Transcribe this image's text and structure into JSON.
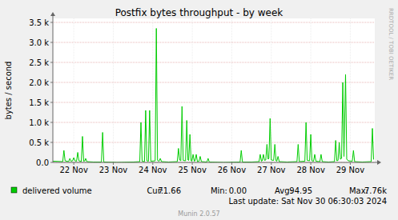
{
  "chart_data": {
    "type": "line",
    "title": "Postfix bytes throughput - by week",
    "y_label": "bytes / second",
    "x": [
      21.97,
      22.22,
      22.25,
      22.28,
      22.37,
      22.4,
      22.43,
      22.47,
      22.5,
      22.53,
      22.57,
      22.6,
      22.63,
      22.69,
      22.72,
      22.75,
      22.78,
      22.8,
      22.83,
      23.0,
      23.2,
      23.23,
      23.26,
      23.6,
      24.0,
      24.17,
      24.2,
      24.23,
      24.29,
      24.32,
      24.35,
      24.39,
      24.42,
      24.45,
      24.56,
      24.59,
      24.62,
      24.66,
      24.69,
      24.72,
      24.9,
      25.12,
      25.15,
      25.18,
      25.21,
      25.24,
      25.27,
      25.33,
      25.36,
      25.39,
      25.41,
      25.44,
      25.47,
      25.49,
      25.52,
      25.55,
      25.57,
      25.6,
      25.63,
      25.67,
      25.7,
      25.73,
      25.87,
      25.9,
      25.93,
      26.3,
      26.71,
      26.74,
      26.77,
      27.0,
      27.19,
      27.22,
      27.25,
      27.27,
      27.3,
      27.33,
      27.36,
      27.39,
      27.42,
      27.44,
      27.47,
      27.5,
      27.56,
      27.59,
      27.62,
      27.64,
      27.67,
      27.7,
      27.9,
      28.15,
      28.18,
      28.21,
      28.35,
      28.38,
      28.41,
      28.47,
      28.5,
      28.53,
      28.57,
      28.6,
      28.63,
      28.73,
      28.76,
      28.79,
      28.95,
      29.1,
      29.13,
      29.16,
      29.19,
      29.22,
      29.25,
      29.28,
      29.31,
      29.34,
      29.38,
      29.41,
      29.45,
      29.55,
      29.58,
      29.61,
      29.8,
      30.03,
      30.06,
      30.09
    ],
    "series": [
      {
        "name": "delivered volume",
        "color": "#00cc00",
        "values": [
          30,
          20,
          300,
          40,
          20,
          100,
          30,
          40,
          120,
          40,
          30,
          250,
          40,
          20,
          650,
          30,
          40,
          100,
          20,
          10,
          10,
          750,
          10,
          0,
          10,
          20,
          1000,
          30,
          20,
          1300,
          40,
          30,
          1300,
          30,
          40,
          3350,
          50,
          30,
          100,
          20,
          10,
          20,
          350,
          60,
          40,
          1400,
          50,
          40,
          1050,
          60,
          50,
          700,
          40,
          30,
          200,
          30,
          40,
          200,
          20,
          30,
          150,
          20,
          10,
          100,
          10,
          0,
          10,
          300,
          10,
          10,
          20,
          200,
          30,
          40,
          200,
          50,
          60,
          450,
          80,
          100,
          1100,
          60,
          50,
          450,
          40,
          30,
          150,
          20,
          10,
          20,
          450,
          20,
          30,
          1000,
          50,
          40,
          700,
          40,
          30,
          200,
          30,
          20,
          200,
          20,
          10,
          20,
          550,
          40,
          50,
          500,
          80,
          100,
          2000,
          150,
          2200,
          80,
          40,
          30,
          300,
          20,
          10,
          20,
          850,
          72
        ]
      }
    ],
    "xlim": [
      21.97,
      30.12
    ],
    "xticks": [
      {
        "value": 22.5,
        "label": "22 Nov"
      },
      {
        "value": 23.5,
        "label": "23 Nov"
      },
      {
        "value": 24.5,
        "label": "24 Nov"
      },
      {
        "value": 25.5,
        "label": "25 Nov"
      },
      {
        "value": 26.5,
        "label": "26 Nov"
      },
      {
        "value": 27.5,
        "label": "27 Nov"
      },
      {
        "value": 28.5,
        "label": "28 Nov"
      },
      {
        "value": 29.5,
        "label": "29 Nov"
      }
    ],
    "ylim": [
      0,
      3600
    ],
    "yticks": [
      {
        "value": 0,
        "label": "0.0"
      },
      {
        "value": 500,
        "label": "0.5 k"
      },
      {
        "value": 1000,
        "label": "1.0 k"
      },
      {
        "value": 1500,
        "label": "1.5 k"
      },
      {
        "value": 2000,
        "label": "2.0 k"
      },
      {
        "value": 2500,
        "label": "2.5 k"
      },
      {
        "value": 3000,
        "label": "3.0 k"
      },
      {
        "value": 3500,
        "label": "3.5 k"
      }
    ],
    "grid": true,
    "stats": {
      "headers": [
        "Cur:",
        "Min:",
        "Avg:",
        "Max:"
      ],
      "values": [
        "71.66",
        "0.00",
        "94.95",
        "7.76k"
      ]
    },
    "last_update": "Last update: Sat Nov 30 06:30:03 2024",
    "footer": "Munin 2.0.57",
    "watermark": "RRDTOOL / TOBI OETIKER"
  }
}
